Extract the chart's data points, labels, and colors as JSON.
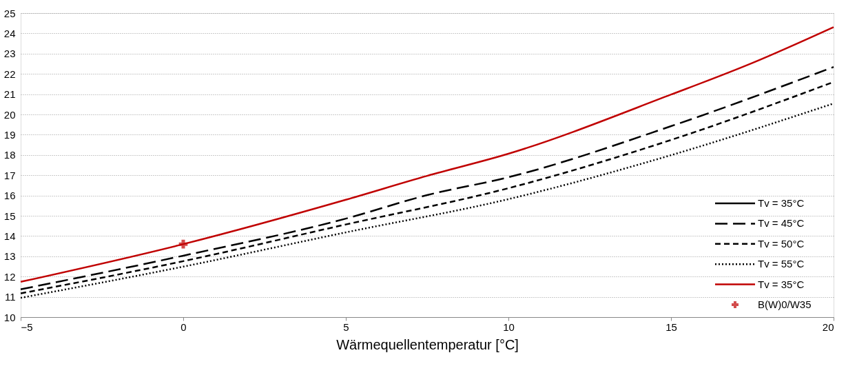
{
  "chart_data": {
    "type": "line",
    "xlabel": "Wärmequellentemperatur [°C]",
    "xlim": [
      -5,
      20
    ],
    "xticks": [
      -5,
      0,
      5,
      10,
      15,
      20
    ],
    "ylim": [
      10,
      25
    ],
    "yticks": [
      10,
      11,
      12,
      13,
      14,
      15,
      16,
      17,
      18,
      19,
      20,
      21,
      22,
      23,
      24,
      25
    ],
    "grid": "y",
    "legend": "bottom right",
    "x": [
      -5,
      0,
      5,
      7.5,
      10,
      15,
      17.5,
      20
    ],
    "series": [
      {
        "name": "Tv = 35°C",
        "color": "#000000",
        "line_style": "solid",
        "values": [
          null,
          null,
          null,
          null,
          null,
          null,
          null,
          null
        ]
      },
      {
        "name": "Tv = 45°C",
        "color": "#000000",
        "line_style": "dashed",
        "values": [
          11.37,
          13.03,
          14.86,
          16.02,
          16.9,
          19.42,
          null,
          22.34
        ]
      },
      {
        "name": "Tv = 50°C",
        "color": "#000000",
        "line_style": "dashed",
        "values": [
          11.17,
          12.76,
          14.57,
          null,
          16.36,
          18.74,
          null,
          21.6
        ]
      },
      {
        "name": "Tv = 55°C",
        "color": "#000000",
        "line_style": "dotted",
        "values": [
          10.95,
          12.49,
          14.18,
          null,
          15.82,
          17.99,
          null,
          20.54
        ]
      },
      {
        "name": "Tv = 35°C",
        "color": "#c00000",
        "line_style": "solid",
        "values": [
          11.74,
          13.6,
          15.79,
          16.97,
          18.06,
          20.98,
          22.54,
          24.31
        ]
      },
      {
        "name": "B(W)0/W35",
        "type": "scatter",
        "marker": "cross",
        "color": "#c00000",
        "x": [
          0
        ],
        "values": [
          13.6
        ]
      }
    ]
  }
}
